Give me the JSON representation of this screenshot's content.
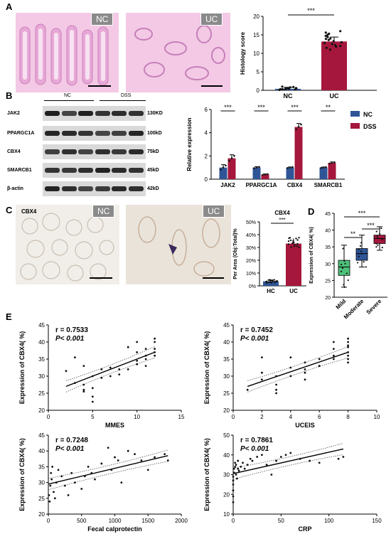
{
  "panels": {
    "A": {
      "letter": "A",
      "img_tags": [
        "NC",
        "UC"
      ],
      "chart_data": {
        "type": "bar",
        "categories": [
          "NC",
          "UC"
        ],
        "values": [
          0.4,
          13.2
        ],
        "errors": [
          0.4,
          1.2
        ],
        "ylabel": "Histology score",
        "ylim": [
          0,
          20
        ],
        "yticks": [
          0,
          5,
          10,
          15,
          20
        ],
        "significance": "***",
        "colors": [
          "#2f5597",
          "#a5173c"
        ],
        "points_nc": [
          0.1,
          0.2,
          0.3,
          0.4,
          0.5,
          0.6,
          0.8,
          1.0,
          0.2,
          0.4,
          0.6,
          0.9,
          0.3,
          0.5
        ],
        "points_uc": [
          11,
          11.5,
          12,
          12.2,
          12.5,
          13,
          13.3,
          13.6,
          14,
          14.4,
          15,
          15.6,
          16,
          12.8,
          13.9,
          14.7,
          11.8,
          15.3
        ]
      }
    },
    "B": {
      "letter": "B",
      "blot": {
        "groups": [
          "NC",
          "DSS"
        ],
        "rows": [
          {
            "name": "JAK2",
            "kd": "130KD"
          },
          {
            "name": "PPARGC1A",
            "kd": "100kD"
          },
          {
            "name": "CBX4",
            "kd": "75kD"
          },
          {
            "name": "SMARCB1",
            "kd": "45kD"
          },
          {
            "name": "β-actin",
            "kd": "42kD"
          }
        ]
      },
      "chart_data": {
        "type": "bar",
        "categories": [
          "JAK2",
          "PPARGC1A",
          "CBX4",
          "SMARCB1"
        ],
        "series": [
          {
            "name": "NC",
            "values": [
              1.0,
              1.0,
              1.0,
              1.0
            ],
            "errors": [
              0.25,
              0.08,
              0.05,
              0.05
            ],
            "color": "#2f5597"
          },
          {
            "name": "DSS",
            "values": [
              1.8,
              0.4,
              4.5,
              1.4
            ],
            "errors": [
              0.3,
              0.05,
              0.3,
              0.08
            ],
            "color": "#a5173c"
          }
        ],
        "significance": [
          "***",
          "***",
          "***",
          "**"
        ],
        "ylabel": "Relative expression",
        "ylim": [
          0,
          6
        ],
        "yticks": [
          0,
          2,
          4,
          6
        ],
        "legend": "top-right"
      }
    },
    "C": {
      "letter": "C",
      "img_label": "CBX4",
      "img_tags": [
        "NC",
        "UC"
      ],
      "chart_data": {
        "type": "bar",
        "title": "CBX4",
        "categories": [
          "HC",
          "UC"
        ],
        "values": [
          3.5,
          33
        ],
        "errors": [
          1.0,
          4.0
        ],
        "ylabel": "Per Area (Obj:Total)%",
        "ylim": [
          0,
          50
        ],
        "yticks": [
          0,
          10,
          20,
          30,
          40,
          50
        ],
        "ytick_suffix": "%",
        "significance": "***",
        "colors": [
          "#2f5597",
          "#a5173c"
        ]
      }
    },
    "D": {
      "letter": "D",
      "chart_data": {
        "type": "box",
        "categories": [
          "Mild",
          "Moderate",
          "Severe"
        ],
        "boxes": [
          {
            "min": 23,
            "q1": 26.5,
            "median": 29,
            "q3": 31,
            "max": 35.5
          },
          {
            "min": 29,
            "q1": 31,
            "median": 33,
            "q3": 34.5,
            "max": 38.5
          },
          {
            "min": 34,
            "q1": 36,
            "median": 37.5,
            "q3": 38.5,
            "max": 41
          }
        ],
        "colors": [
          "#4ec07a",
          "#2f5597",
          "#a5173c"
        ],
        "ylabel": "Expression of CBX4( %)",
        "ylim": [
          20,
          45
        ],
        "yticks": [
          20,
          25,
          30,
          35,
          40,
          45
        ],
        "significance": [
          {
            "pair": [
              0,
              1
            ],
            "label": "**"
          },
          {
            "pair": [
              1,
              2
            ],
            "label": "***"
          },
          {
            "pair": [
              0,
              2
            ],
            "label": "***"
          }
        ]
      }
    },
    "E": {
      "letter": "E",
      "chart_data": [
        {
          "type": "scatter",
          "xlabel": "MMES",
          "ylabel": "Expression of CBX4( %)",
          "xlim": [
            0,
            15
          ],
          "ylim": [
            20,
            45
          ],
          "xticks": [
            0,
            5,
            10,
            15
          ],
          "yticks": [
            20,
            25,
            30,
            35,
            40,
            45
          ],
          "r_text": "r = 0.7533",
          "p_text": "P< 0.001",
          "fit": [
            [
              2,
              27
            ],
            [
              12,
              37
            ]
          ],
          "x": [
            2,
            3,
            3,
            4,
            4,
            4,
            4,
            5,
            5,
            5,
            5,
            6,
            6,
            7,
            7,
            8,
            8,
            9,
            9,
            10,
            10,
            10,
            10,
            11,
            11,
            11,
            11,
            12,
            12,
            12,
            12,
            12
          ],
          "y": [
            31.5,
            35.5,
            28,
            27.5,
            33,
            26,
            25.5,
            30,
            26.5,
            24,
            22.5,
            32,
            29.5,
            30,
            32.5,
            32,
            30.5,
            32,
            38.5,
            40,
            37,
            34.5,
            33.5,
            38,
            36,
            35,
            33,
            41,
            40,
            38,
            37,
            36
          ]
        },
        {
          "type": "scatter",
          "xlabel": "UCEIS",
          "ylabel": "Expression of CBX4( %)",
          "xlim": [
            0,
            10
          ],
          "ylim": [
            20,
            45
          ],
          "xticks": [
            0,
            2,
            4,
            6,
            8,
            10
          ],
          "yticks": [
            20,
            25,
            30,
            35,
            40,
            45
          ],
          "r_text": "r = 0.7452",
          "p_text": "P< 0.001",
          "fit": [
            [
              1,
              27
            ],
            [
              8,
              37
            ]
          ],
          "x": [
            1,
            2,
            2,
            2,
            3,
            3,
            3,
            3,
            4,
            4,
            4,
            5,
            5,
            5,
            5,
            6,
            6,
            6,
            7,
            7,
            7,
            7,
            8,
            8,
            8,
            8,
            8,
            8,
            8,
            8
          ],
          "y": [
            26,
            31,
            29,
            35.5,
            30,
            26,
            27.5,
            25,
            30,
            35.5,
            32.5,
            34,
            32,
            31,
            29,
            35,
            33,
            33,
            40,
            38,
            36,
            35,
            41,
            40,
            39,
            38.5,
            37,
            36,
            35,
            34
          ]
        },
        {
          "type": "scatter",
          "xlabel": "Fecal calprotectin",
          "ylabel": "Expression of CBX4( %)",
          "xlim": [
            0,
            2000
          ],
          "ylim": [
            20,
            45
          ],
          "xticks": [
            0,
            500,
            1000,
            1500,
            2000
          ],
          "yticks": [
            20,
            25,
            30,
            35,
            40,
            45
          ],
          "r_text": "r = 0.7248",
          "p_text": "P< 0.001",
          "fit": [
            [
              0,
              29.5
            ],
            [
              1800,
              38.5
            ]
          ],
          "x": [
            10,
            20,
            30,
            40,
            50,
            60,
            80,
            100,
            120,
            150,
            200,
            250,
            300,
            350,
            400,
            500,
            550,
            600,
            650,
            700,
            800,
            900,
            950,
            1000,
            1050,
            1100,
            1200,
            1300,
            1400,
            1500,
            1600,
            1750,
            1800
          ],
          "y": [
            26,
            24,
            29,
            33,
            31,
            35,
            27,
            25,
            30,
            34,
            32,
            29,
            26,
            33,
            30,
            28,
            32,
            35,
            33,
            31,
            36,
            41,
            34,
            38,
            37,
            30,
            40,
            39,
            37,
            34,
            38,
            39,
            37
          ]
        },
        {
          "type": "scatter",
          "xlabel": "CRP",
          "ylabel": "Expression of CBX4( %)",
          "xlim": [
            0,
            150
          ],
          "ylim": [
            10,
            50
          ],
          "xticks": [
            0,
            50,
            100,
            150
          ],
          "yticks": [
            10,
            20,
            30,
            40,
            50
          ],
          "r_text": "r = 0.7861",
          "p_text": "P< 0.001",
          "fit": [
            [
              0,
              30.5
            ],
            [
              115,
              43
            ]
          ],
          "x": [
            0,
            0,
            0,
            0,
            0,
            0,
            1,
            1,
            2,
            2,
            3,
            3,
            4,
            5,
            5,
            6,
            8,
            10,
            12,
            15,
            18,
            20,
            25,
            30,
            35,
            40,
            45,
            50,
            55,
            60,
            70,
            80,
            90,
            110,
            115
          ],
          "y": [
            16,
            19,
            22,
            25,
            27,
            29,
            31,
            33,
            34,
            36,
            35,
            30,
            28,
            33,
            37,
            32,
            34,
            36,
            33,
            35,
            38,
            37,
            39,
            40,
            35,
            30,
            37,
            39,
            40,
            41,
            38,
            37,
            36,
            38,
            39
          ]
        }
      ]
    }
  }
}
